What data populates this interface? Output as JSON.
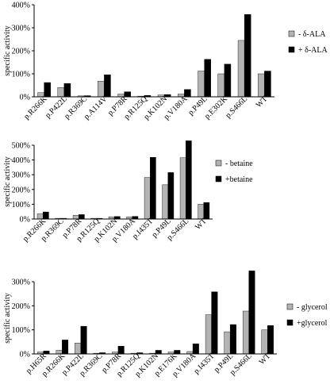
{
  "colors": {
    "minus": "#b3b3b3",
    "plus": "#000000",
    "axis": "#000000"
  },
  "chart_data": [
    {
      "type": "bar",
      "ylabel": "specific activity",
      "ylim": [
        0,
        400
      ],
      "yticks": [
        0,
        100,
        200,
        300,
        400
      ],
      "ytick_labels": [
        "0%",
        "100%",
        "200%",
        "300%",
        "400%"
      ],
      "legend_position": "right",
      "categories": [
        "p.R266K",
        "p.P422L",
        "p.R369C",
        "p.A114V",
        "p.P78R",
        "p.R125Q",
        "p.K102N",
        "p.V180A",
        "p.P49L",
        "p.E302K",
        "p.S466L",
        "WT"
      ],
      "series": [
        {
          "name": "- δ-ALA",
          "values": [
            18,
            40,
            4,
            68,
            12,
            3,
            8,
            12,
            112,
            100,
            245,
            100
          ]
        },
        {
          "name": "+ δ-ALA",
          "values": [
            62,
            58,
            5,
            96,
            22,
            6,
            10,
            32,
            163,
            142,
            358,
            112
          ]
        }
      ]
    },
    {
      "type": "bar",
      "ylabel": "specific activity",
      "ylim": [
        0,
        500
      ],
      "yticks": [
        0,
        100,
        200,
        300,
        400,
        500
      ],
      "ytick_labels": [
        "0%",
        "100%",
        "200%",
        "300%",
        "400%",
        "500%"
      ],
      "legend_position": "right",
      "categories": [
        "p.R266K",
        "p.R369C",
        "p.P78R",
        "p.R125Q",
        "p.K102N",
        "p.V180A",
        "p.I435T",
        "p.P49L",
        "p.S466L",
        "WT"
      ],
      "series": [
        {
          "name": "- betaine",
          "values": [
            35,
            5,
            25,
            5,
            15,
            15,
            282,
            232,
            415,
            100
          ]
        },
        {
          "name": "+betaine",
          "values": [
            48,
            5,
            30,
            5,
            17,
            18,
            418,
            315,
            530,
            112
          ]
        }
      ]
    },
    {
      "type": "bar",
      "ylabel": "specific activity",
      "ylim": [
        0,
        300
      ],
      "yticks": [
        0,
        100,
        200,
        300
      ],
      "ytick_labels": [
        "0%",
        "100%",
        "200%",
        "300%"
      ],
      "legend_position": "right",
      "categories": [
        "p.H65R",
        "p.R266K",
        "p.P422L",
        "p.R369C",
        "p.P78R",
        "p.R125Q",
        "p.K102N",
        "p.E176K",
        "p.V180A",
        "p.I435T",
        "p.P49L",
        "p.S466L",
        "WT"
      ],
      "series": [
        {
          "name": "- glycerol",
          "values": [
            8,
            15,
            45,
            3,
            8,
            3,
            3,
            8,
            10,
            163,
            92,
            178,
            100
          ]
        },
        {
          "name": "+glycerol",
          "values": [
            12,
            58,
            115,
            5,
            32,
            5,
            15,
            15,
            42,
            258,
            122,
            345,
            118
          ]
        }
      ]
    }
  ]
}
